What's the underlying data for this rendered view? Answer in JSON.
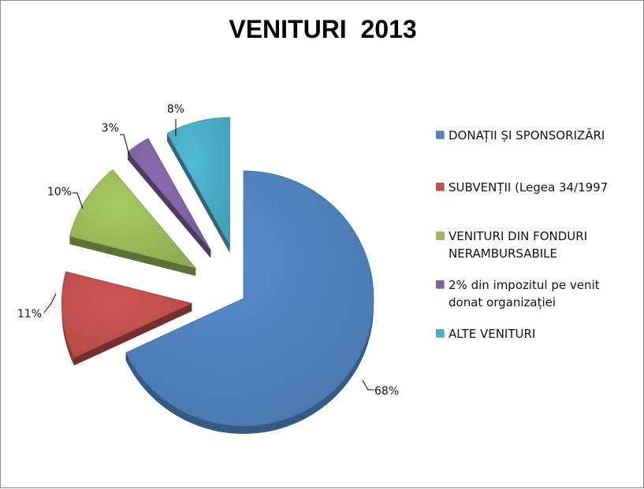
{
  "chart_data": {
    "type": "pie",
    "title": "VENITURI  2013",
    "slices": [
      {
        "name": "DONAȚII ȘI SPONSORIZĂRI",
        "value": 68,
        "label": "68%",
        "color": "#4f81bd"
      },
      {
        "name": "SUBVENȚII (Legea 34/1997",
        "value": 11,
        "label": "11%",
        "color": "#c0504d"
      },
      {
        "name": "VENITURI DIN FONDURI NERAMBURSABILE",
        "value": 10,
        "label": "10%",
        "color": "#9bbb59"
      },
      {
        "name": "2% din impozitul pe venit donat organizației",
        "value": 3,
        "label": "3%",
        "color": "#8064a2"
      },
      {
        "name": "ALTE VENITURI",
        "value": 8,
        "label": "8%",
        "color": "#4bacc6"
      }
    ],
    "legend_position": "right",
    "exploded": true
  }
}
